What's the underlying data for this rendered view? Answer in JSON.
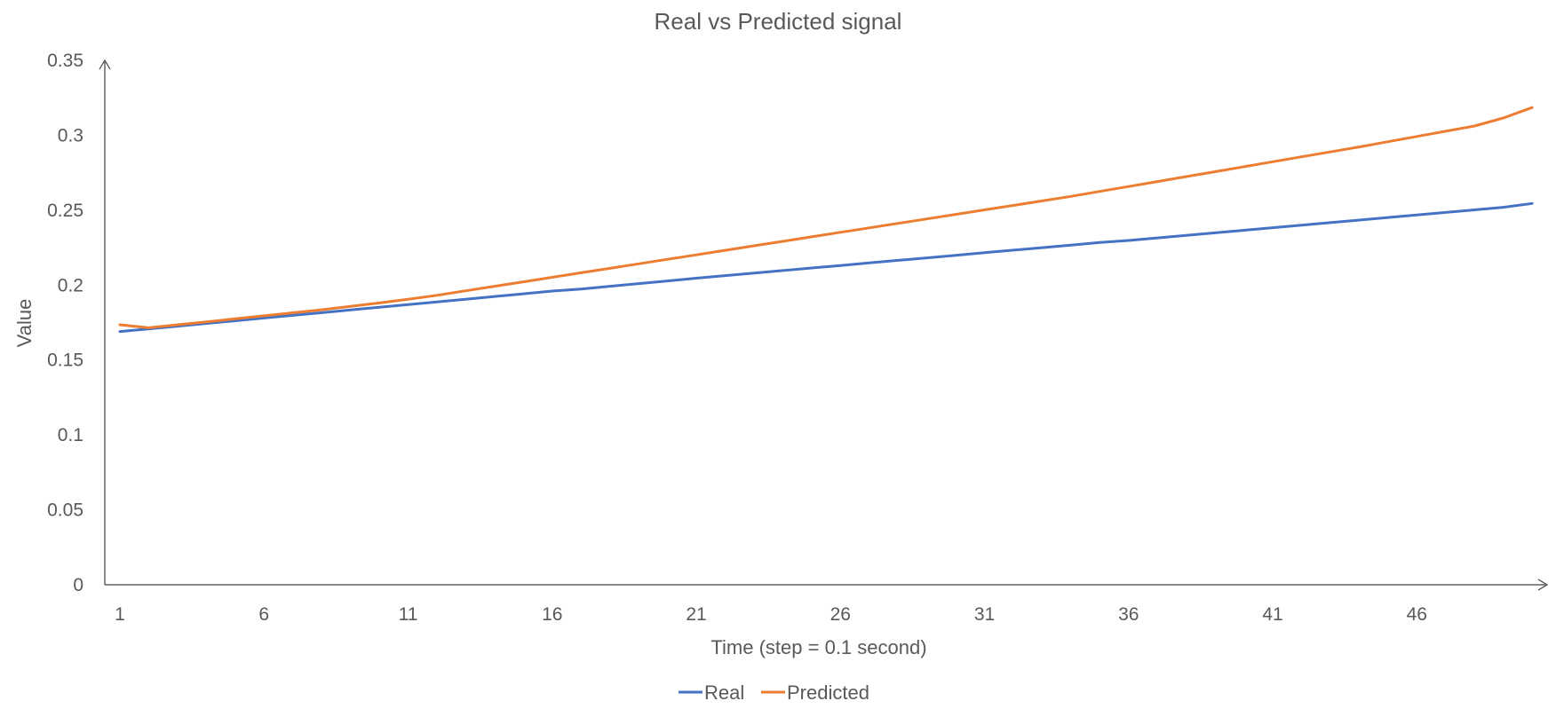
{
  "chart_data": {
    "type": "line",
    "title": "Real vs Predicted signal",
    "xlabel": "Time (step = 0.1 second)",
    "ylabel": "Value",
    "x": [
      1,
      2,
      3,
      4,
      5,
      6,
      7,
      8,
      9,
      10,
      11,
      12,
      13,
      14,
      15,
      16,
      17,
      18,
      19,
      20,
      21,
      22,
      23,
      24,
      25,
      26,
      27,
      28,
      29,
      30,
      31,
      32,
      33,
      34,
      35,
      36,
      37,
      38,
      39,
      40,
      41,
      42,
      43,
      44,
      45,
      46,
      47,
      48,
      49,
      50
    ],
    "x_tick_labels": [
      "1",
      "6",
      "11",
      "16",
      "21",
      "26",
      "31",
      "36",
      "41",
      "46"
    ],
    "ylim": [
      0,
      0.35
    ],
    "y_ticks": [
      0,
      0.05,
      0.1,
      0.15,
      0.2,
      0.25,
      0.3,
      0.35
    ],
    "y_tick_labels": [
      "0",
      "0.05",
      "0.1",
      "0.15",
      "0.2",
      "0.25",
      "0.3",
      "0.35"
    ],
    "grid": false,
    "legend": "bottom-center",
    "series": [
      {
        "name": "Real",
        "color": "#4472C4",
        "values": [
          0.169,
          0.1708,
          0.1726,
          0.1744,
          0.1762,
          0.178,
          0.1798,
          0.1816,
          0.1834,
          0.1852,
          0.187,
          0.1888,
          0.1906,
          0.1924,
          0.1942,
          0.196,
          0.1974,
          0.1992,
          0.201,
          0.2028,
          0.2046,
          0.2063,
          0.208,
          0.2097,
          0.2114,
          0.2131,
          0.2148,
          0.2165,
          0.2182,
          0.2199,
          0.2216,
          0.2233,
          0.225,
          0.2267,
          0.2284,
          0.2298,
          0.2315,
          0.2332,
          0.2349,
          0.2366,
          0.2383,
          0.24,
          0.2417,
          0.2434,
          0.2451,
          0.2468,
          0.2485,
          0.2502,
          0.2519,
          0.2545
        ]
      },
      {
        "name": "Predicted",
        "color": "#ED7D31",
        "values": [
          0.1735,
          0.1715,
          0.1735,
          0.1755,
          0.1775,
          0.1795,
          0.1815,
          0.1835,
          0.1858,
          0.1881,
          0.1905,
          0.1932,
          0.1962,
          0.1992,
          0.2022,
          0.2052,
          0.2082,
          0.2112,
          0.2142,
          0.2172,
          0.2202,
          0.2232,
          0.2262,
          0.2292,
          0.2322,
          0.2352,
          0.2382,
          0.2412,
          0.2442,
          0.2472,
          0.2502,
          0.2532,
          0.2562,
          0.2592,
          0.2625,
          0.2658,
          0.2691,
          0.2724,
          0.2757,
          0.279,
          0.2823,
          0.2856,
          0.2889,
          0.2922,
          0.2957,
          0.2992,
          0.3027,
          0.3062,
          0.3115,
          0.3185
        ]
      }
    ]
  }
}
